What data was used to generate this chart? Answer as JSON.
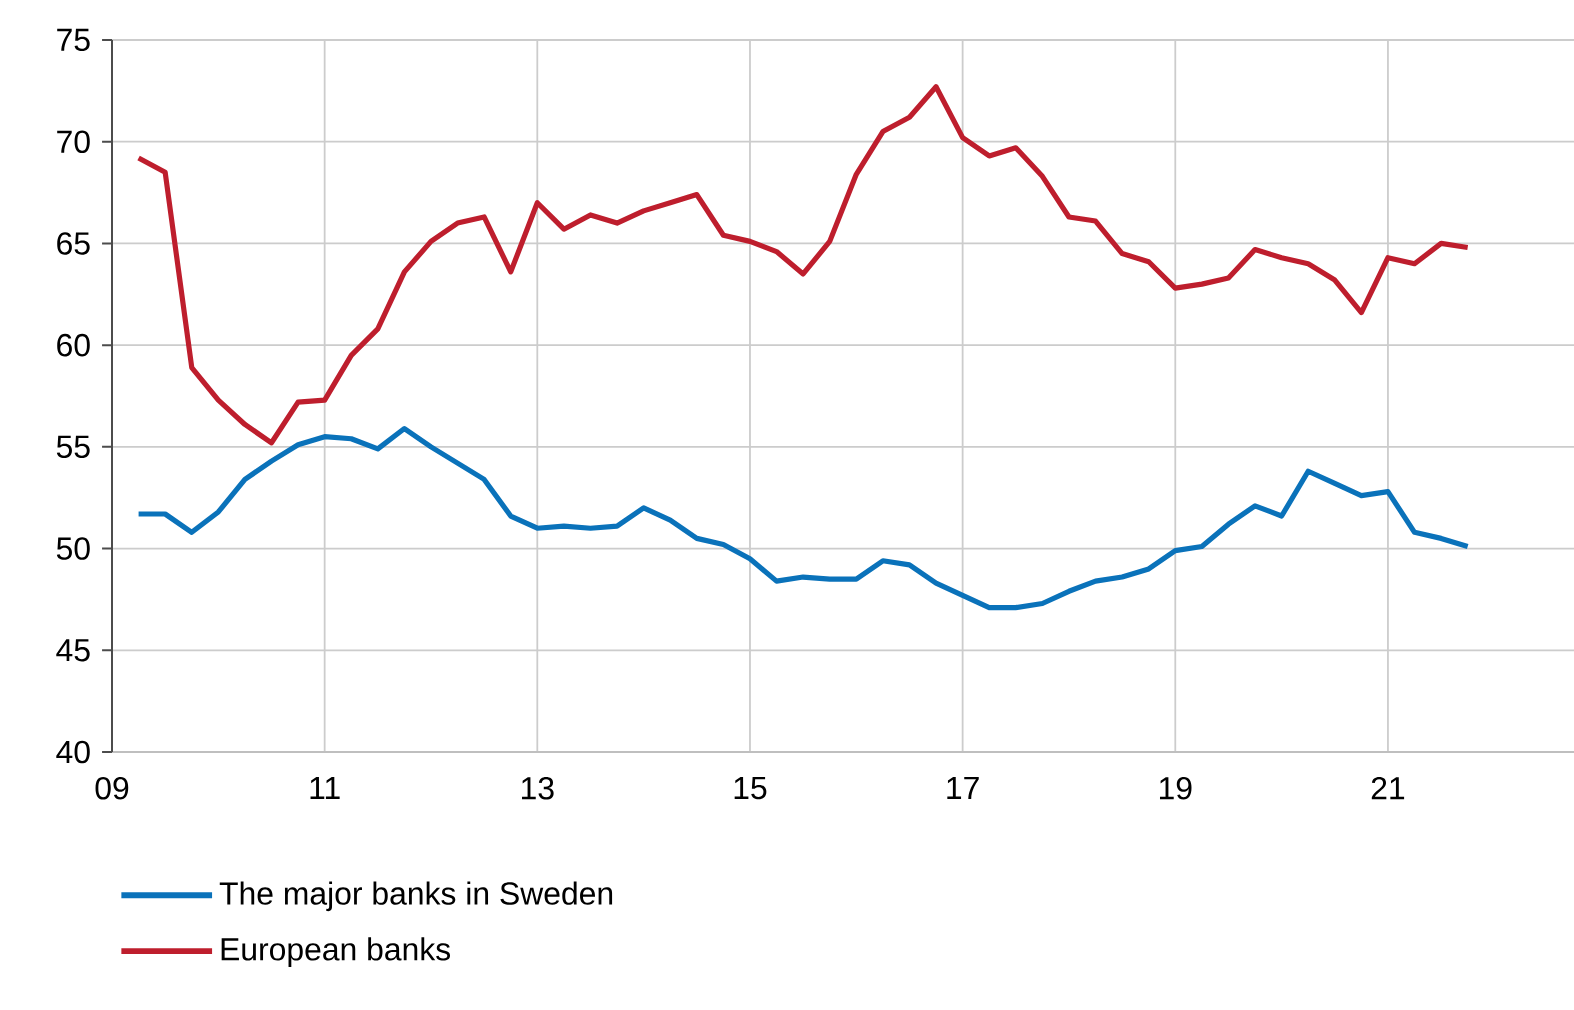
{
  "chart_data": {
    "type": "line",
    "x": [
      2009.25,
      2009.5,
      2009.75,
      2010,
      2010.25,
      2010.5,
      2010.75,
      2011,
      2011.25,
      2011.5,
      2011.75,
      2012,
      2012.25,
      2012.5,
      2012.75,
      2013,
      2013.25,
      2013.5,
      2013.75,
      2014,
      2014.25,
      2014.5,
      2014.75,
      2015,
      2015.25,
      2015.5,
      2015.75,
      2016,
      2016.25,
      2016.5,
      2016.75,
      2017,
      2017.25,
      2017.5,
      2017.75,
      2018,
      2018.25,
      2018.5,
      2018.75,
      2019,
      2019.25,
      2019.5,
      2019.75,
      2020,
      2020.25,
      2020.5,
      2020.75,
      2021,
      2021.25,
      2021.5,
      2021.75
    ],
    "series": [
      {
        "name": "The major banks in Sweden",
        "color": "#0a72ba",
        "values": [
          51.7,
          51.7,
          50.8,
          51.8,
          53.4,
          54.3,
          55.1,
          55.5,
          55.4,
          54.9,
          55.9,
          55.0,
          54.2,
          53.4,
          51.6,
          51.0,
          51.1,
          51.0,
          51.1,
          52.0,
          51.4,
          50.5,
          50.2,
          49.5,
          48.4,
          48.6,
          48.5,
          48.5,
          49.4,
          49.2,
          48.3,
          47.7,
          47.1,
          47.1,
          47.3,
          47.9,
          48.4,
          48.6,
          49.0,
          49.9,
          50.1,
          51.2,
          52.1,
          51.6,
          53.8,
          53.2,
          52.6,
          52.8,
          50.8,
          50.5,
          50.1
        ]
      },
      {
        "name": "European banks",
        "color": "#be1e2d",
        "values": [
          69.2,
          68.5,
          58.9,
          57.3,
          56.1,
          55.2,
          57.2,
          57.3,
          59.5,
          60.8,
          63.6,
          65.1,
          66.0,
          66.3,
          63.6,
          67.0,
          65.7,
          66.4,
          66.0,
          66.6,
          67.0,
          67.4,
          65.4,
          65.1,
          64.6,
          63.5,
          65.1,
          68.4,
          70.5,
          71.2,
          72.7,
          70.2,
          69.3,
          69.7,
          68.3,
          66.3,
          66.1,
          64.5,
          64.1,
          62.8,
          63.0,
          63.3,
          64.7,
          64.3,
          64.0,
          63.2,
          61.6,
          64.3,
          64.0,
          65.0,
          64.8
        ]
      }
    ],
    "xlim": [
      2009,
      2022.75
    ],
    "xticks": [
      {
        "value": 2009,
        "label": "09"
      },
      {
        "value": 2011,
        "label": "11"
      },
      {
        "value": 2013,
        "label": "13"
      },
      {
        "value": 2015,
        "label": "15"
      },
      {
        "value": 2017,
        "label": "17"
      },
      {
        "value": 2019,
        "label": "19"
      },
      {
        "value": 2021,
        "label": "21"
      }
    ],
    "ylim": [
      40,
      75
    ],
    "yticks": [
      40,
      45,
      50,
      55,
      60,
      65,
      70,
      75
    ],
    "grid": true,
    "legend": "bottom",
    "marker": "none",
    "line_style": "solid"
  }
}
